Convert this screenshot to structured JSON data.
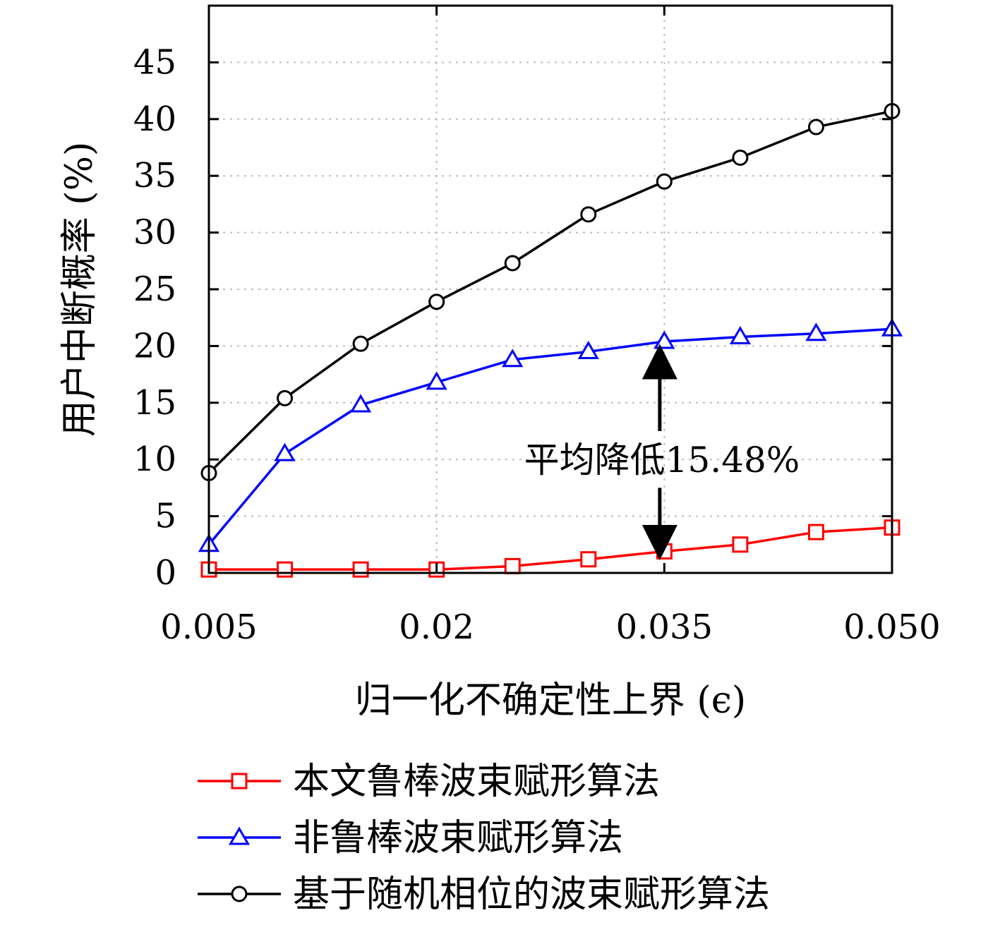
{
  "chart_data": {
    "type": "line",
    "xlabel": "归一化不确定性上界 (ϵ)",
    "ylabel": "用户中断概率 (%)",
    "x": [
      0.005,
      0.01,
      0.015,
      0.02,
      0.025,
      0.03,
      0.035,
      0.04,
      0.045,
      0.05
    ],
    "xlim": [
      0.005,
      0.05
    ],
    "ylim": [
      0,
      50
    ],
    "xticks": [
      0.005,
      0.02,
      0.035,
      0.05
    ],
    "xtick_labels": [
      "0.005",
      "0.02",
      "0.035",
      "0.050"
    ],
    "yticks": [
      0,
      5,
      10,
      15,
      20,
      25,
      30,
      35,
      40,
      45
    ],
    "ytick_labels": [
      "0",
      "5",
      "10",
      "15",
      "20",
      "25",
      "30",
      "35",
      "40",
      "45"
    ],
    "grid": true,
    "legend_position": "below",
    "series": [
      {
        "name": "本文鲁棒波束赋形算法",
        "color": "#ff0000",
        "marker": "square",
        "values": [
          0.3,
          0.3,
          0.3,
          0.3,
          0.6,
          1.2,
          1.9,
          2.5,
          3.6,
          4.0
        ]
      },
      {
        "name": "非鲁棒波束赋形算法",
        "color": "#0000ff",
        "marker": "triangle",
        "values": [
          2.5,
          10.5,
          14.8,
          16.8,
          18.8,
          19.5,
          20.4,
          20.8,
          21.1,
          21.5
        ]
      },
      {
        "name": "基于随机相位的波束赋形算法",
        "color": "#000000",
        "marker": "circle",
        "values": [
          8.8,
          15.4,
          20.2,
          23.9,
          27.3,
          31.6,
          34.5,
          36.6,
          39.3,
          40.7
        ]
      }
    ],
    "annotation": {
      "text": "平均降低15.48%",
      "x": 0.0347,
      "y_top": 19.5,
      "y_bottom": 1.8
    }
  }
}
